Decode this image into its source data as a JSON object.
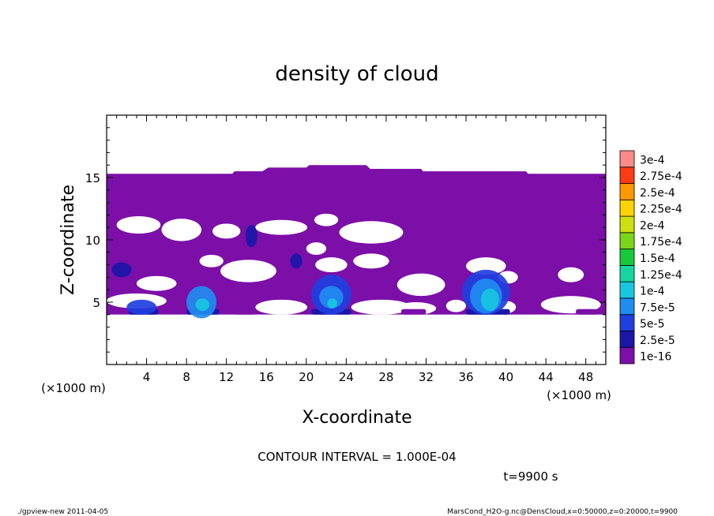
{
  "chart_data": {
    "type": "heatmap",
    "title": "density of cloud",
    "xlabel": "X-coordinate",
    "ylabel": "Z-coordinate",
    "x_unit_left": "(×1000 m)",
    "x_unit_right": "(×1000 m)",
    "xlim": [
      0,
      50
    ],
    "ylim": [
      0,
      20
    ],
    "xticks": [
      4,
      8,
      12,
      16,
      20,
      24,
      28,
      32,
      36,
      40,
      44,
      48
    ],
    "yticks": [
      5,
      10,
      15
    ],
    "contour_interval": "CONTOUR INTERVAL = 1.000E-04",
    "time_label": "t=9900 s",
    "legend": {
      "labels": [
        "1e-16",
        "2.5e-5",
        "5e-5",
        "7.5e-5",
        "1e-4",
        "1.25e-4",
        "1.5e-4",
        "1.75e-4",
        "2e-4",
        "2.25e-4",
        "2.5e-4",
        "2.75e-4",
        "3e-4"
      ],
      "colors": [
        "#7b0fa8",
        "#1a16a8",
        "#1f3fe0",
        "#1f8cf0",
        "#18c6e0",
        "#16d6a0",
        "#18c83c",
        "#7ad418",
        "#cce010",
        "#ffd200",
        "#ff9800",
        "#ff3a14",
        "#ff8a8a"
      ]
    },
    "cloud_top": [
      [
        0,
        15.3
      ],
      [
        10,
        15.3
      ],
      [
        12.6,
        15.3
      ],
      [
        12.8,
        15.5
      ],
      [
        15.6,
        15.5
      ],
      [
        16.2,
        15.8
      ],
      [
        20,
        15.8
      ],
      [
        20.3,
        16.0
      ],
      [
        26,
        16.0
      ],
      [
        26.4,
        15.7
      ],
      [
        31.5,
        15.7
      ],
      [
        31.7,
        15.5
      ],
      [
        42,
        15.5
      ],
      [
        42.2,
        15.3
      ],
      [
        50,
        15.3
      ]
    ],
    "cloud_base_z": 4.0,
    "clear_regions": [
      {
        "cx": 3.2,
        "cz": 11.2,
        "rx": 2.2,
        "rz": 0.7
      },
      {
        "cx": 7.5,
        "cz": 10.8,
        "rx": 2.0,
        "rz": 0.9
      },
      {
        "cx": 12.0,
        "cz": 10.7,
        "rx": 1.4,
        "rz": 0.6
      },
      {
        "cx": 17.5,
        "cz": 11.0,
        "rx": 2.6,
        "rz": 0.6
      },
      {
        "cx": 22.0,
        "cz": 11.6,
        "rx": 1.2,
        "rz": 0.5
      },
      {
        "cx": 26.5,
        "cz": 10.6,
        "rx": 3.2,
        "rz": 0.9
      },
      {
        "cx": 21.0,
        "cz": 9.3,
        "rx": 1.0,
        "rz": 0.5
      },
      {
        "cx": 10.5,
        "cz": 8.3,
        "rx": 1.2,
        "rz": 0.5
      },
      {
        "cx": 14.2,
        "cz": 7.5,
        "rx": 2.8,
        "rz": 0.9
      },
      {
        "cx": 22.5,
        "cz": 8.0,
        "rx": 1.6,
        "rz": 0.6
      },
      {
        "cx": 26.5,
        "cz": 8.3,
        "rx": 1.8,
        "rz": 0.6
      },
      {
        "cx": 38.0,
        "cz": 7.9,
        "rx": 2.0,
        "rz": 0.7
      },
      {
        "cx": 46.5,
        "cz": 7.2,
        "rx": 1.3,
        "rz": 0.6
      },
      {
        "cx": 40.2,
        "cz": 7.0,
        "rx": 1.0,
        "rz": 0.5
      },
      {
        "cx": 5.0,
        "cz": 6.5,
        "rx": 2.0,
        "rz": 0.6
      },
      {
        "cx": 31.5,
        "cz": 6.4,
        "rx": 2.4,
        "rz": 0.9
      },
      {
        "cx": 3.0,
        "cz": 5.1,
        "rx": 3.0,
        "rz": 0.6
      },
      {
        "cx": 17.5,
        "cz": 4.6,
        "rx": 2.6,
        "rz": 0.6
      },
      {
        "cx": 27.5,
        "cz": 4.6,
        "rx": 3.0,
        "rz": 0.6
      },
      {
        "cx": 31.0,
        "cz": 4.5,
        "rx": 2.0,
        "rz": 0.5
      },
      {
        "cx": 35.0,
        "cz": 4.7,
        "rx": 1.0,
        "rz": 0.5
      },
      {
        "cx": 40.0,
        "cz": 4.6,
        "rx": 1.0,
        "rz": 0.5
      },
      {
        "cx": 46.5,
        "cz": 4.8,
        "rx": 3.0,
        "rz": 0.7
      }
    ],
    "cores": [
      {
        "cx": 3.5,
        "cz": 4.6,
        "rx": 1.5,
        "rz": 0.6,
        "level": 2
      },
      {
        "cx": 9.5,
        "cz": 5.0,
        "rx": 1.5,
        "rz": 1.3,
        "level": 3
      },
      {
        "cx": 9.6,
        "cz": 4.8,
        "rx": 0.7,
        "rz": 0.5,
        "level": 4
      },
      {
        "cx": 22.5,
        "cz": 5.6,
        "rx": 2.0,
        "rz": 1.6,
        "level": 2
      },
      {
        "cx": 22.5,
        "cz": 5.4,
        "rx": 1.2,
        "rz": 0.9,
        "level": 3
      },
      {
        "cx": 22.6,
        "cz": 4.9,
        "rx": 0.5,
        "rz": 0.4,
        "level": 4
      },
      {
        "cx": 38.0,
        "cz": 5.8,
        "rx": 2.4,
        "rz": 1.8,
        "level": 2
      },
      {
        "cx": 38.0,
        "cz": 5.5,
        "rx": 1.6,
        "rz": 1.4,
        "level": 3
      },
      {
        "cx": 38.4,
        "cz": 5.2,
        "rx": 0.9,
        "rz": 0.9,
        "level": 4
      },
      {
        "cx": 14.5,
        "cz": 10.3,
        "rx": 0.6,
        "rz": 0.9,
        "level": 1
      },
      {
        "cx": 19.0,
        "cz": 8.3,
        "rx": 0.6,
        "rz": 0.6,
        "level": 1
      },
      {
        "cx": 1.5,
        "cz": 7.6,
        "rx": 1.0,
        "rz": 0.6,
        "level": 1
      }
    ],
    "bottom_strips": [
      {
        "x0": 2.2,
        "x1": 5.2,
        "level": 1
      },
      {
        "x0": 8.0,
        "x1": 11.3,
        "level": 1
      },
      {
        "x0": 12.8,
        "x1": 15.0,
        "level": 0
      },
      {
        "x0": 20.5,
        "x1": 24.5,
        "level": 1
      },
      {
        "x0": 29.5,
        "x1": 32.0,
        "level": 0
      },
      {
        "x0": 36.0,
        "x1": 40.4,
        "level": 1
      },
      {
        "x0": 47.0,
        "x1": 49.2,
        "level": 0
      }
    ]
  },
  "footer": {
    "left": "./gpview-new   2011-04-05",
    "right": "MarsCond_H2O-g.nc@DensCloud,x=0:50000,z=0:20000,t=9900"
  }
}
